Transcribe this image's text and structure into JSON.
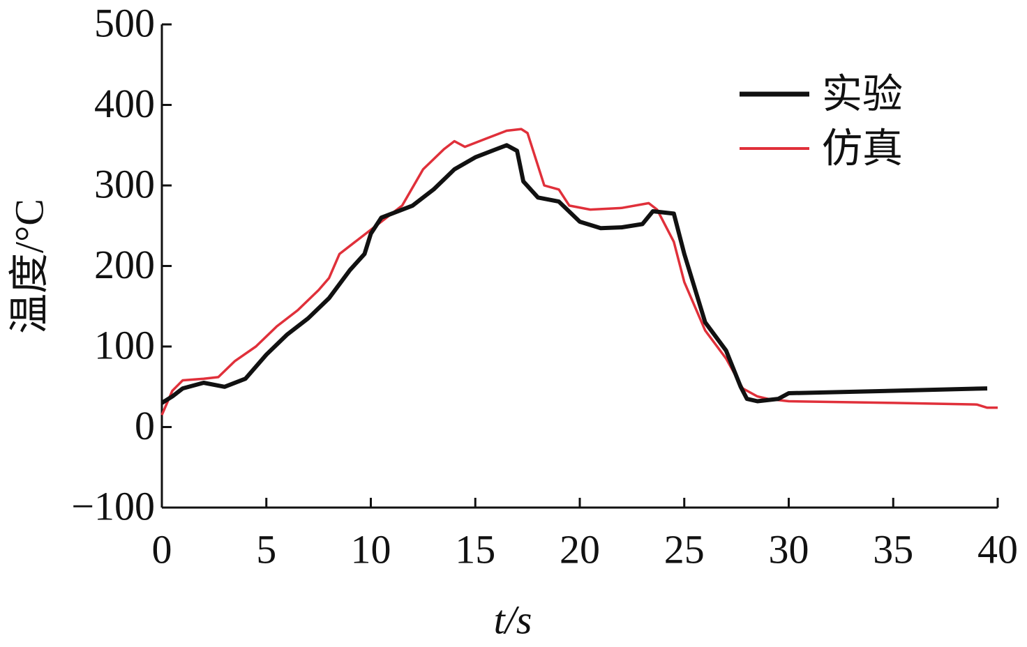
{
  "chart_data": {
    "type": "line",
    "xlabel": "t/s",
    "ylabel": "温度/°C",
    "xlim": [
      0,
      40
    ],
    "xticks": [
      0,
      5,
      10,
      15,
      20,
      25,
      30,
      35,
      40
    ],
    "ylim": [
      -100,
      500
    ],
    "yticks": [
      {
        "value": -100,
        "label": "−100"
      },
      0,
      100,
      200,
      300,
      400,
      500
    ],
    "legend": "upper right",
    "series": [
      {
        "name": "实验",
        "color": "#111111",
        "x": [
          0,
          0.5,
          1,
          2,
          3,
          4,
          5,
          6,
          7,
          8,
          9,
          9.7,
          10,
          10.5,
          11,
          12,
          13,
          14,
          15,
          16,
          16.5,
          17,
          17.3,
          18,
          19,
          20,
          21,
          22,
          23,
          23.5,
          24.5,
          25,
          26,
          27,
          27.7,
          28,
          28.5,
          29.5,
          30,
          35,
          39.5
        ],
        "values": [
          30,
          38,
          48,
          55,
          50,
          60,
          90,
          115,
          135,
          160,
          195,
          215,
          240,
          260,
          265,
          275,
          295,
          320,
          335,
          345,
          350,
          343,
          305,
          285,
          280,
          255,
          247,
          248,
          252,
          268,
          265,
          215,
          130,
          95,
          50,
          35,
          32,
          35,
          42,
          45,
          48
        ]
      },
      {
        "name": "仿真",
        "color": "#e0303a",
        "x": [
          0,
          0.5,
          1,
          2,
          2.7,
          3.5,
          4.5,
          5.5,
          6.5,
          7.5,
          8,
          8.5,
          9.5,
          10.5,
          11.5,
          12.5,
          13.5,
          14,
          14.5,
          15.5,
          16.5,
          17.2,
          17.5,
          18.3,
          19,
          19.5,
          20.5,
          22,
          23.3,
          23.7,
          24.5,
          25,
          26,
          27,
          27.8,
          28.5,
          29,
          30,
          35,
          39,
          39.5,
          40
        ],
        "values": [
          15,
          45,
          58,
          60,
          62,
          82,
          100,
          125,
          145,
          170,
          185,
          215,
          235,
          255,
          275,
          320,
          345,
          355,
          348,
          358,
          368,
          370,
          365,
          300,
          295,
          275,
          270,
          272,
          278,
          270,
          230,
          180,
          120,
          85,
          48,
          38,
          35,
          32,
          30,
          28,
          24,
          24
        ]
      }
    ]
  }
}
